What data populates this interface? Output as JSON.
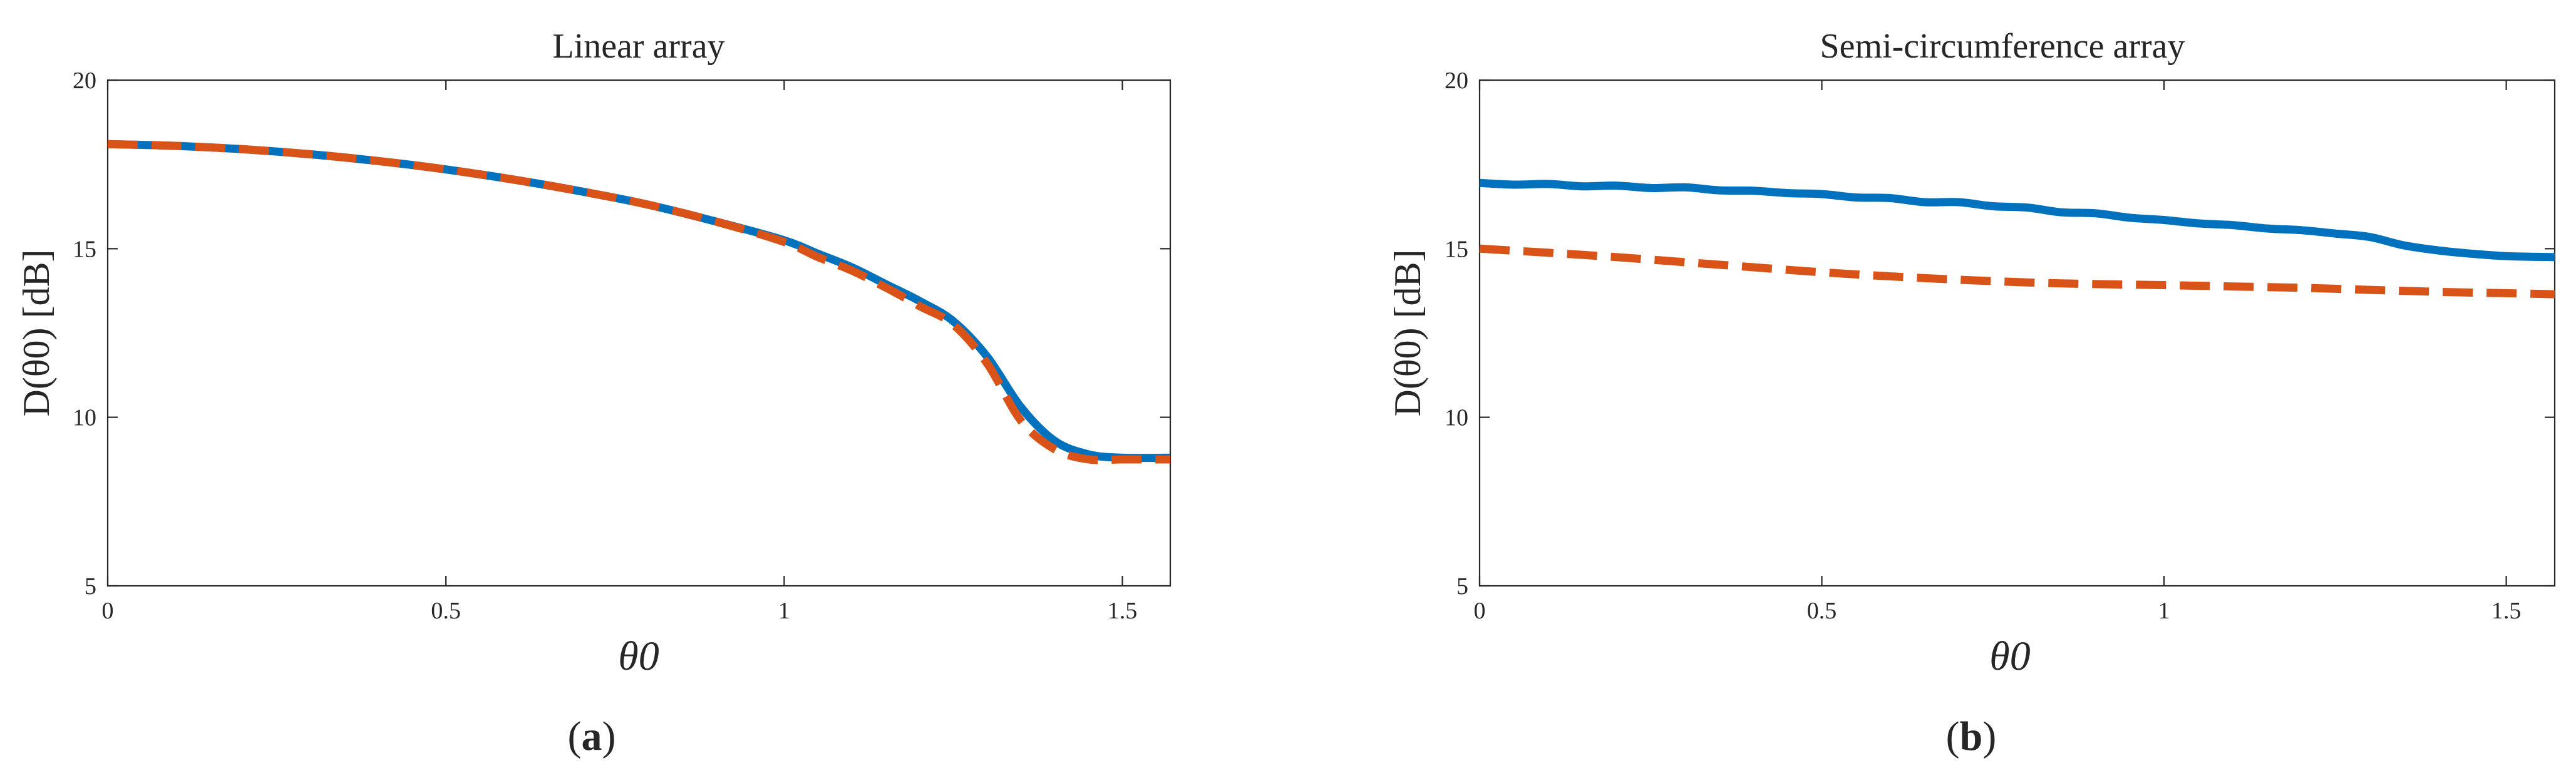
{
  "chart_data": [
    {
      "type": "line",
      "panel_label": "a",
      "title": "Linear array",
      "xlabel": "θ0",
      "ylabel": "D(θ0) [dB]",
      "xlim": [
        0,
        1.5708
      ],
      "ylim": [
        5,
        20
      ],
      "xticks": [
        "0",
        "0.5",
        "1",
        "1.5"
      ],
      "yticks": [
        "5",
        "10",
        "15",
        "20"
      ],
      "grid": false,
      "series": [
        {
          "style": "solid",
          "color": "#0072BD",
          "x": [
            0,
            0.1,
            0.2,
            0.3,
            0.4,
            0.5,
            0.6,
            0.7,
            0.8,
            0.9,
            1.0,
            1.05,
            1.1,
            1.15,
            1.2,
            1.25,
            1.3,
            1.35,
            1.4,
            1.45,
            1.5,
            1.5708
          ],
          "y": [
            18.1,
            18.05,
            17.95,
            17.8,
            17.6,
            17.35,
            17.05,
            16.7,
            16.3,
            15.8,
            15.25,
            14.85,
            14.45,
            13.95,
            13.45,
            12.85,
            11.8,
            10.3,
            9.3,
            8.9,
            8.8,
            8.8
          ]
        },
        {
          "style": "dashed",
          "color": "#D95319",
          "x": [
            0,
            0.1,
            0.2,
            0.3,
            0.4,
            0.5,
            0.6,
            0.7,
            0.8,
            0.9,
            1.0,
            1.05,
            1.1,
            1.15,
            1.2,
            1.25,
            1.3,
            1.35,
            1.4,
            1.45,
            1.5,
            1.5708
          ],
          "y": [
            18.1,
            18.05,
            17.95,
            17.8,
            17.6,
            17.35,
            17.05,
            16.7,
            16.3,
            15.8,
            15.2,
            14.75,
            14.35,
            13.85,
            13.3,
            12.75,
            11.6,
            9.9,
            9.05,
            8.75,
            8.75,
            8.75
          ]
        }
      ]
    },
    {
      "type": "line",
      "panel_label": "b",
      "title": "Semi-circumference array",
      "xlabel": "θ0",
      "ylabel": "D(θ0) [dB]",
      "xlim": [
        0,
        1.5708
      ],
      "ylim": [
        5,
        20
      ],
      "xticks": [
        "0",
        "0.5",
        "1",
        "1.5"
      ],
      "yticks": [
        "5",
        "10",
        "15",
        "20"
      ],
      "grid": false,
      "series": [
        {
          "style": "solid",
          "color": "#0072BD",
          "x": [
            0,
            0.05,
            0.1,
            0.15,
            0.2,
            0.25,
            0.3,
            0.35,
            0.4,
            0.45,
            0.5,
            0.55,
            0.6,
            0.65,
            0.7,
            0.75,
            0.8,
            0.85,
            0.9,
            0.95,
            1.0,
            1.05,
            1.1,
            1.15,
            1.2,
            1.25,
            1.3,
            1.35,
            1.4,
            1.45,
            1.5,
            1.5708
          ],
          "y": [
            16.95,
            16.9,
            16.92,
            16.85,
            16.87,
            16.8,
            16.82,
            16.73,
            16.72,
            16.65,
            16.62,
            16.52,
            16.5,
            16.38,
            16.38,
            16.26,
            16.22,
            16.08,
            16.05,
            15.92,
            15.85,
            15.75,
            15.7,
            15.6,
            15.55,
            15.45,
            15.35,
            15.1,
            14.95,
            14.85,
            14.78,
            14.75
          ]
        },
        {
          "style": "dashed",
          "color": "#D95319",
          "x": [
            0,
            0.1,
            0.2,
            0.3,
            0.4,
            0.5,
            0.6,
            0.7,
            0.8,
            0.9,
            1.0,
            1.1,
            1.2,
            1.3,
            1.4,
            1.5,
            1.5708
          ],
          "y": [
            15.0,
            14.88,
            14.75,
            14.6,
            14.45,
            14.3,
            14.18,
            14.08,
            14.0,
            13.95,
            13.92,
            13.88,
            13.84,
            13.78,
            13.72,
            13.68,
            13.65
          ]
        }
      ]
    }
  ]
}
